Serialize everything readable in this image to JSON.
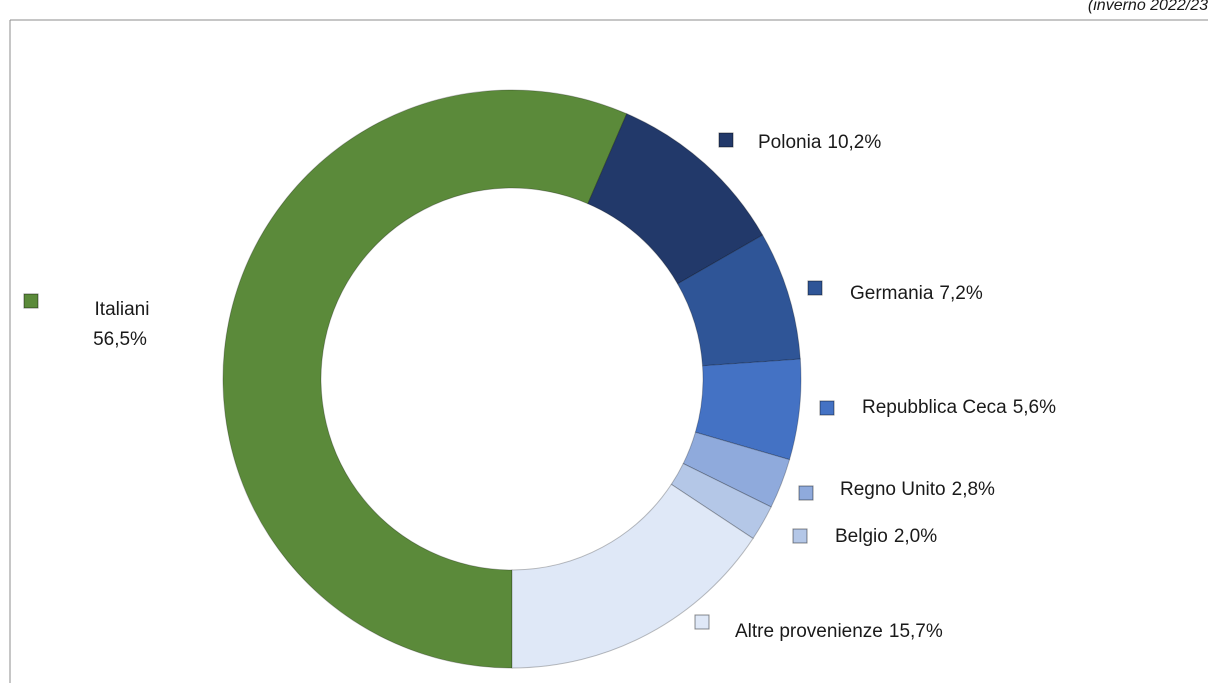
{
  "chart_data": {
    "type": "donut",
    "subtitle": "(inverno 2022/23",
    "categories": [
      "Italiani",
      "Polonia",
      "Germania",
      "Repubblica Ceca",
      "Regno Unito",
      "Belgio",
      "Altre provenienze"
    ],
    "values": [
      56.5,
      10.2,
      7.2,
      5.6,
      2.8,
      2.0,
      15.7
    ],
    "value_labels": [
      "56,5%",
      "10,2%",
      "7,2%",
      "5,6%",
      "2,8%",
      "2,0%",
      "15,7%"
    ],
    "colors": [
      "#5b8a3a",
      "#22396a",
      "#2f5597",
      "#4472c4",
      "#8faadc",
      "#b4c7e7",
      "#dfe8f7"
    ]
  }
}
